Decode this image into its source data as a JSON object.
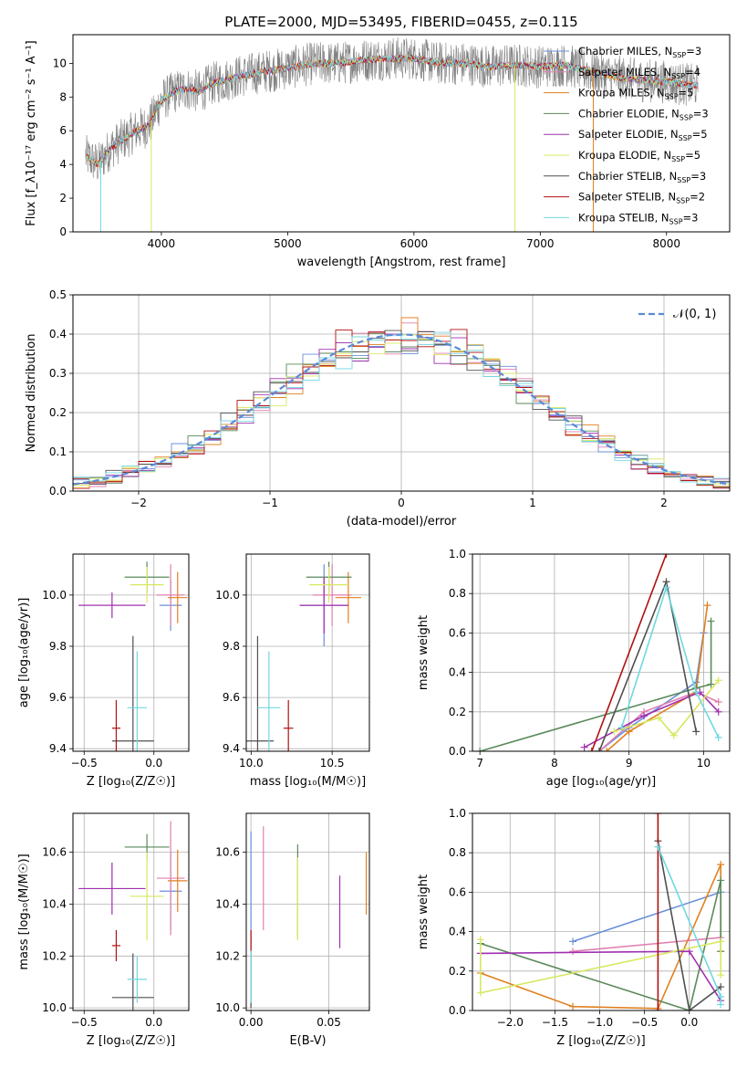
{
  "chart_data": [
    {
      "id": "spectrum",
      "type": "line",
      "title": "PLATE=2000, MJD=53495, FIBERID=0455, z=0.115",
      "xlabel": "wavelength [Angstrom, rest frame]",
      "ylabel": "Flux [f_λ10⁻¹⁷ erg cm⁻² s⁻¹ A⁻¹]",
      "xlim": [
        3300,
        8500
      ],
      "ylim": [
        0,
        11.7
      ],
      "xticks": [
        "4000",
        "5000",
        "6000",
        "7000",
        "8000"
      ],
      "yticks": [
        "0",
        "2",
        "4",
        "6",
        "8",
        "10"
      ],
      "grid": false,
      "legend_position": "top-right",
      "series": [
        {
          "name": "Chabrier MILES, N",
          "sub": "SSP",
          "suffix": "=3",
          "color": "#6a8fd8"
        },
        {
          "name": "Salpeter MILES, N",
          "sub": "SSP",
          "suffix": "=4",
          "color": "#e07fb0"
        },
        {
          "name": "Kroupa MILES, N",
          "sub": "SSP",
          "suffix": "=5",
          "color": "#e08020"
        },
        {
          "name": "Chabrier ELODIE, N",
          "sub": "SSP",
          "suffix": "=3",
          "color": "#5a8a5a"
        },
        {
          "name": "Salpeter ELODIE, N",
          "sub": "SSP",
          "suffix": "=5",
          "color": "#a030b0"
        },
        {
          "name": "Kroupa ELODIE, N",
          "sub": "SSP",
          "suffix": "=5",
          "color": "#d8e860"
        },
        {
          "name": "Chabrier STELIB, N",
          "sub": "SSP",
          "suffix": "=3",
          "color": "#505050"
        },
        {
          "name": "Salpeter STELIB, N",
          "sub": "SSP",
          "suffix": "=2",
          "color": "#b01010"
        },
        {
          "name": "Kroupa STELIB, N",
          "sub": "SSP",
          "suffix": "=3",
          "color": "#70d8e0"
        }
      ],
      "model_spectrum": {
        "x": [
          3400,
          3500,
          3600,
          3700,
          3800,
          3900,
          4000,
          4100,
          4200,
          4300,
          4400,
          4600,
          4800,
          5000,
          5200,
          5400,
          5600,
          5800,
          6000,
          6200,
          6400,
          6600,
          6800,
          7000,
          7200,
          7400,
          7600,
          7800,
          8000,
          8200
        ],
        "y": [
          4.5,
          4.0,
          5.0,
          5.5,
          6.0,
          6.3,
          7.8,
          8.3,
          8.5,
          8.3,
          8.8,
          9.2,
          9.5,
          9.7,
          10.0,
          10.0,
          10.2,
          10.3,
          10.3,
          10.0,
          10.0,
          9.8,
          9.9,
          9.8,
          9.9,
          9.5,
          9.2,
          9.0,
          8.9,
          8.7
        ]
      }
    },
    {
      "id": "residuals",
      "type": "histogram",
      "xlabel": "(data-model)/error",
      "ylabel": "Normed distribution",
      "xlim": [
        -2.5,
        2.5
      ],
      "ylim": [
        0,
        0.5
      ],
      "xticks": [
        "−2",
        "−1",
        "0",
        "1",
        "2"
      ],
      "yticks": [
        "0.0",
        "0.1",
        "0.2",
        "0.3",
        "0.4",
        "0.5"
      ],
      "grid": true,
      "legend_position": "top-right",
      "legend_label": "𝒩(0, 1)",
      "reference_color": "#5b8ad8"
    },
    {
      "id": "age_vs_Z",
      "type": "errorbar",
      "xlabel": "Z [log₁₀(Z/Z☉)]",
      "ylabel": "age  [log₁₀(age/yr)]",
      "xlim": [
        -0.58,
        0.25
      ],
      "ylim": [
        9.39,
        10.16
      ],
      "xticks": [
        "−0.5",
        "0.0"
      ],
      "yticks": [
        "9.4",
        "9.6",
        "9.8",
        "10.0"
      ],
      "points": [
        {
          "x": 0.12,
          "y": 9.96,
          "xerr": 0.08,
          "yerr": 0.1,
          "color": "#6a8fd8"
        },
        {
          "x": 0.12,
          "y": 10.0,
          "xerr": 0.1,
          "yerr": 0.12,
          "color": "#e07fb0"
        },
        {
          "x": 0.17,
          "y": 9.99,
          "xerr": 0.07,
          "yerr": 0.1,
          "color": "#e08020"
        },
        {
          "x": -0.05,
          "y": 10.07,
          "xerr": 0.16,
          "yerr": 0.06,
          "color": "#5a8a5a"
        },
        {
          "x": -0.3,
          "y": 9.96,
          "xerr": 0.24,
          "yerr": 0.05,
          "color": "#a030b0"
        },
        {
          "x": -0.05,
          "y": 10.04,
          "xerr": 0.12,
          "yerr": 0.07,
          "color": "#d8e860"
        },
        {
          "x": -0.15,
          "y": 9.43,
          "xerr": 0.15,
          "yerr": 0.41,
          "color": "#505050"
        },
        {
          "x": -0.27,
          "y": 9.48,
          "xerr": 0.03,
          "yerr": 0.11,
          "color": "#b01010"
        },
        {
          "x": -0.12,
          "y": 9.56,
          "xerr": 0.07,
          "yerr": 0.22,
          "color": "#70d8e0"
        }
      ]
    },
    {
      "id": "age_vs_mass",
      "type": "errorbar",
      "xlabel": "mass [log₁₀(M/M☉)]",
      "ylabel": "",
      "xlim": [
        9.97,
        10.73
      ],
      "ylim": [
        9.39,
        10.16
      ],
      "xticks": [
        "10.0",
        "10.5"
      ],
      "yticks": [
        "9.4",
        "9.6",
        "9.8",
        "10.0"
      ],
      "points": [
        {
          "x": 10.45,
          "y": 9.96,
          "xerr": 0.15,
          "yerr": 0.16,
          "color": "#6a8fd8"
        },
        {
          "x": 10.5,
          "y": 10.0,
          "xerr": 0.12,
          "yerr": 0.12,
          "color": "#e07fb0"
        },
        {
          "x": 10.6,
          "y": 9.99,
          "xerr": 0.08,
          "yerr": 0.1,
          "color": "#e08020"
        },
        {
          "x": 10.48,
          "y": 10.07,
          "xerr": 0.14,
          "yerr": 0.06,
          "color": "#5a8a5a"
        },
        {
          "x": 10.45,
          "y": 9.96,
          "xerr": 0.15,
          "yerr": 0.11,
          "color": "#a030b0"
        },
        {
          "x": 10.48,
          "y": 10.04,
          "xerr": 0.12,
          "yerr": 0.07,
          "color": "#d8e860"
        },
        {
          "x": 10.04,
          "y": 9.43,
          "xerr": 0.1,
          "yerr": 0.41,
          "color": "#505050"
        },
        {
          "x": 10.23,
          "y": 9.48,
          "xerr": 0.03,
          "yerr": 0.11,
          "color": "#b01010"
        },
        {
          "x": 10.11,
          "y": 9.56,
          "xerr": 0.07,
          "yerr": 0.22,
          "color": "#70d8e0"
        }
      ]
    },
    {
      "id": "massweight_vs_age",
      "type": "line",
      "xlabel": "age  [log₁₀(age/yr)]",
      "ylabel": "mass weight",
      "xlim": [
        6.9,
        10.35
      ],
      "ylim": [
        0,
        1
      ],
      "xticks": [
        "7",
        "8",
        "9",
        "10"
      ],
      "yticks": [
        "0.0",
        "0.2",
        "0.4",
        "0.6",
        "0.8",
        "1.0"
      ],
      "grid": true,
      "series": [
        {
          "color": "#6a8fd8",
          "x": [
            8.6,
            9.0,
            9.9,
            10.0
          ],
          "y": [
            0.0,
            0.12,
            0.35,
            0.6
          ]
        },
        {
          "color": "#e07fb0",
          "x": [
            8.6,
            9.2,
            9.9,
            10.2
          ],
          "y": [
            0.0,
            0.2,
            0.3,
            0.25
          ]
        },
        {
          "color": "#e08020",
          "x": [
            8.7,
            9.0,
            9.9,
            10.05
          ],
          "y": [
            0.0,
            0.1,
            0.3,
            0.74
          ]
        },
        {
          "color": "#5a8a5a",
          "x": [
            7.0,
            9.9,
            10.1,
            10.1
          ],
          "y": [
            0.0,
            0.32,
            0.34,
            0.66
          ]
        },
        {
          "color": "#a030b0",
          "x": [
            8.4,
            9.2,
            9.95,
            10.2
          ],
          "y": [
            0.02,
            0.18,
            0.3,
            0.2
          ]
        },
        {
          "color": "#d8e860",
          "x": [
            8.8,
            9.4,
            9.6,
            10.2
          ],
          "y": [
            0.1,
            0.17,
            0.08,
            0.36
          ]
        },
        {
          "color": "#505050",
          "x": [
            8.6,
            9.5,
            9.9
          ],
          "y": [
            0.0,
            0.86,
            0.1
          ]
        },
        {
          "color": "#b01010",
          "x": [
            8.5,
            9.5
          ],
          "y": [
            0.0,
            1.0
          ]
        },
        {
          "color": "#70d8e0",
          "x": [
            8.9,
            9.5,
            9.9,
            10.2
          ],
          "y": [
            0.12,
            0.83,
            0.3,
            0.07
          ]
        }
      ]
    },
    {
      "id": "mass_vs_Z",
      "type": "errorbar",
      "xlabel": "Z [log₁₀(Z/Z☉)]",
      "ylabel": "mass [log₁₀(M/M☉)]",
      "xlim": [
        -0.58,
        0.25
      ],
      "ylim": [
        9.99,
        10.75
      ],
      "xticks": [
        "−0.5",
        "0.0"
      ],
      "yticks": [
        "10.0",
        "10.2",
        "10.4",
        "10.6"
      ],
      "points": [
        {
          "x": 0.12,
          "y": 10.45,
          "xerr": 0.08,
          "yerr": 0.15,
          "color": "#6a8fd8"
        },
        {
          "x": 0.12,
          "y": 10.5,
          "xerr": 0.1,
          "yerr": 0.22,
          "color": "#e07fb0"
        },
        {
          "x": 0.17,
          "y": 10.49,
          "xerr": 0.07,
          "yerr": 0.12,
          "color": "#e08020"
        },
        {
          "x": -0.05,
          "y": 10.62,
          "xerr": 0.16,
          "yerr": 0.05,
          "color": "#5a8a5a"
        },
        {
          "x": -0.3,
          "y": 10.46,
          "xerr": 0.24,
          "yerr": 0.1,
          "color": "#a030b0"
        },
        {
          "x": -0.05,
          "y": 10.43,
          "xerr": 0.12,
          "yerr": 0.17,
          "color": "#d8e860"
        },
        {
          "x": -0.15,
          "y": 10.04,
          "xerr": 0.15,
          "yerr": 0.17,
          "color": "#505050"
        },
        {
          "x": -0.27,
          "y": 10.24,
          "xerr": 0.03,
          "yerr": 0.06,
          "color": "#b01010"
        },
        {
          "x": -0.12,
          "y": 10.11,
          "xerr": 0.07,
          "yerr": 0.09,
          "color": "#70d8e0"
        }
      ]
    },
    {
      "id": "mass_vs_ebv",
      "type": "errorbar",
      "xlabel": "E(B-V)",
      "ylabel": "",
      "xlim": [
        -0.003,
        0.076
      ],
      "ylim": [
        9.99,
        10.75
      ],
      "xticks": [
        "0.00",
        "0.05"
      ],
      "yticks": [
        "10.0",
        "10.2",
        "10.4",
        "10.6"
      ],
      "points": [
        {
          "x": 0.0,
          "y": 10.45,
          "xerr": 0,
          "yerr": 0.23,
          "color": "#6a8fd8"
        },
        {
          "x": 0.008,
          "y": 10.5,
          "xerr": 0,
          "yerr": 0.2,
          "color": "#e07fb0"
        },
        {
          "x": 0.074,
          "y": 10.48,
          "xerr": 0,
          "yerr": 0.12,
          "color": "#e08020"
        },
        {
          "x": 0.03,
          "y": 10.45,
          "xerr": 0,
          "yerr": 0.18,
          "color": "#5a8a5a"
        },
        {
          "x": 0.057,
          "y": 10.37,
          "xerr": 0,
          "yerr": 0.14,
          "color": "#a030b0"
        },
        {
          "x": 0.03,
          "y": 10.42,
          "xerr": 0,
          "yerr": 0.16,
          "color": "#d8e860"
        },
        {
          "x": 0.0,
          "y": 10.1,
          "xerr": 0,
          "yerr": 0.1,
          "color": "#505050"
        },
        {
          "x": 0.0,
          "y": 10.25,
          "xerr": 0,
          "yerr": 0.05,
          "color": "#b01010"
        },
        {
          "x": 0.0,
          "y": 10.12,
          "xerr": 0,
          "yerr": 0.1,
          "color": "#70d8e0"
        }
      ]
    },
    {
      "id": "massweight_vs_Z",
      "type": "line",
      "xlabel": "Z [log₁₀(Z/Z☉)]",
      "ylabel": "mass weight",
      "xlim": [
        -2.42,
        0.45
      ],
      "ylim": [
        0,
        1
      ],
      "xticks": [
        "−2.0",
        "−1.5",
        "−1.0",
        "−0.5",
        "0.0"
      ],
      "yticks": [
        "0.0",
        "0.2",
        "0.4",
        "0.6",
        "0.8",
        "1.0"
      ],
      "grid": true,
      "series": [
        {
          "color": "#6a8fd8",
          "x": [
            -1.3,
            0.35
          ],
          "y": [
            0.35,
            0.6
          ]
        },
        {
          "color": "#e07fb0",
          "x": [
            -1.3,
            0.35
          ],
          "y": [
            0.3,
            0.37
          ]
        },
        {
          "color": "#e08020",
          "x": [
            -2.33,
            -1.3,
            -0.35,
            0.35,
            0.35
          ],
          "y": [
            0.19,
            0.02,
            0.01,
            0.74,
            0.3
          ]
        },
        {
          "color": "#5a8a5a",
          "x": [
            -2.33,
            0.0,
            0.35,
            0.35
          ],
          "y": [
            0.34,
            0.0,
            0.66,
            0.3
          ]
        },
        {
          "color": "#a030b0",
          "x": [
            -2.33,
            0.0,
            0.35
          ],
          "y": [
            0.29,
            0.3,
            0.05
          ]
        },
        {
          "color": "#d8e860",
          "x": [
            -2.33,
            -2.33,
            0.35,
            0.35
          ],
          "y": [
            0.36,
            0.09,
            0.35,
            0.18
          ]
        },
        {
          "color": "#505050",
          "x": [
            -0.35,
            0.0,
            0.35
          ],
          "y": [
            0.86,
            0.0,
            0.12
          ]
        },
        {
          "color": "#b01010",
          "x": [
            -0.35,
            -0.35
          ],
          "y": [
            0.0,
            1.0
          ]
        },
        {
          "color": "#70d8e0",
          "x": [
            -0.35,
            0.35,
            0.35
          ],
          "y": [
            0.83,
            0.07,
            0.03
          ]
        }
      ]
    }
  ]
}
